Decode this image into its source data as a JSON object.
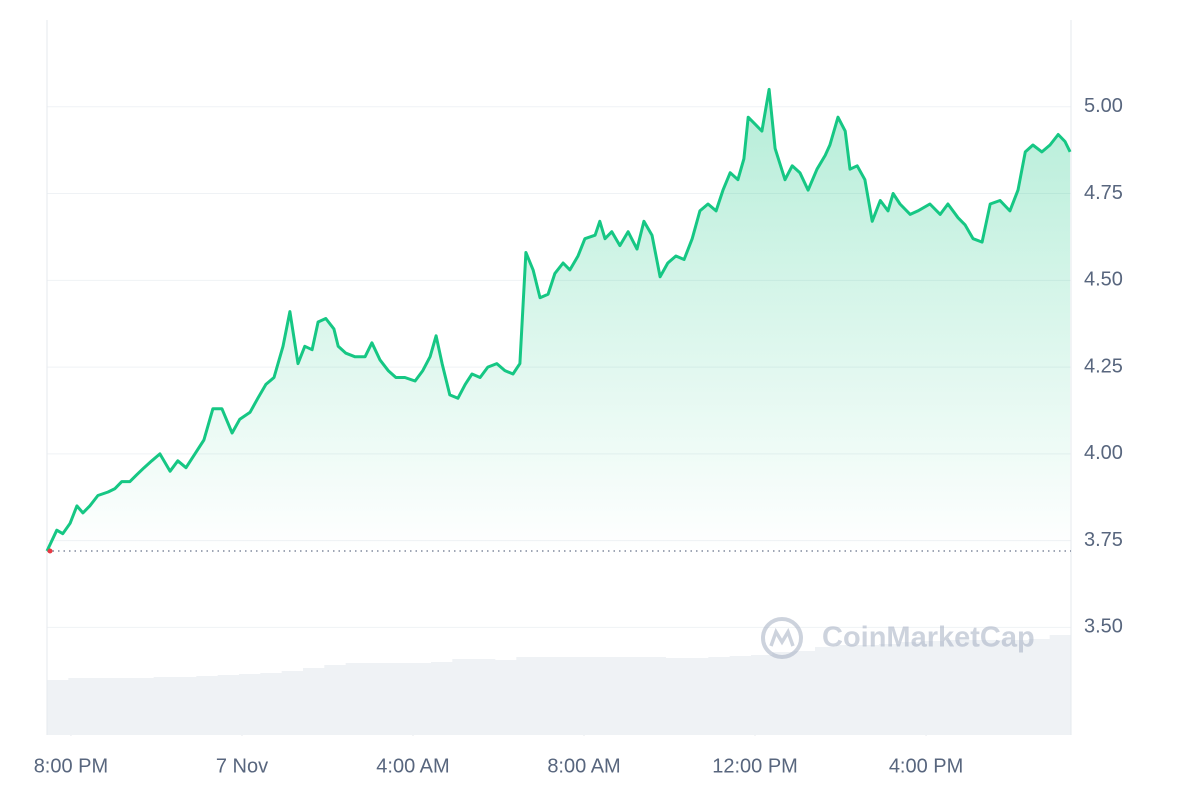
{
  "chart_data": {
    "type": "line",
    "watermark": "CoinMarketCap",
    "x": [
      -0.56,
      -0.33,
      -0.19,
      -0.02,
      0.14,
      0.28,
      0.44,
      0.63,
      0.87,
      1.03,
      1.19,
      1.38,
      1.54,
      1.71,
      1.89,
      2.08,
      2.32,
      2.5,
      2.69,
      2.9,
      3.11,
      3.32,
      3.53,
      3.77,
      3.95,
      4.19,
      4.37,
      4.56,
      4.75,
      4.96,
      5.12,
      5.31,
      5.47,
      5.64,
      5.78,
      5.96,
      6.15,
      6.25,
      6.43,
      6.64,
      6.88,
      7.04,
      7.23,
      7.42,
      7.6,
      7.81,
      8.05,
      8.23,
      8.4,
      8.54,
      8.68,
      8.86,
      9.05,
      9.22,
      9.38,
      9.57,
      9.75,
      9.96,
      10.15,
      10.34,
      10.5,
      10.64,
      10.81,
      10.97,
      11.16,
      11.32,
      11.51,
      11.67,
      11.86,
      12.02,
      12.26,
      12.37,
      12.49,
      12.65,
      12.84,
      13.03,
      13.24,
      13.4,
      13.59,
      13.78,
      13.96,
      14.15,
      14.34,
      14.53,
      14.71,
      14.9,
      15.09,
      15.25,
      15.42,
      15.6,
      15.74,
      15.84,
      16.0,
      16.16,
      16.33,
      16.47,
      16.7,
      16.87,
      17.05,
      17.24,
      17.45,
      17.64,
      17.75,
      17.94,
      18.11,
      18.22,
      18.39,
      18.57,
      18.74,
      18.93,
      19.11,
      19.23,
      19.39,
      19.63,
      19.81,
      20.09,
      20.33,
      20.51,
      20.75,
      20.91,
      21.1,
      21.31,
      21.5,
      21.73,
      21.96,
      22.15,
      22.32,
      22.5,
      22.71,
      22.9,
      23.09,
      23.25,
      23.37
    ],
    "series": [
      {
        "color": "#16c784",
        "values": [
          3.72,
          3.78,
          3.77,
          3.8,
          3.85,
          3.83,
          3.85,
          3.88,
          3.89,
          3.9,
          3.92,
          3.92,
          3.94,
          3.96,
          3.98,
          4.0,
          3.95,
          3.98,
          3.96,
          4.0,
          4.04,
          4.13,
          4.13,
          4.06,
          4.1,
          4.12,
          4.16,
          4.2,
          4.22,
          4.31,
          4.41,
          4.26,
          4.31,
          4.3,
          4.38,
          4.39,
          4.36,
          4.31,
          4.29,
          4.28,
          4.28,
          4.32,
          4.27,
          4.24,
          4.22,
          4.22,
          4.21,
          4.24,
          4.28,
          4.34,
          4.26,
          4.17,
          4.16,
          4.2,
          4.23,
          4.22,
          4.25,
          4.26,
          4.24,
          4.23,
          4.26,
          4.58,
          4.53,
          4.45,
          4.46,
          4.52,
          4.55,
          4.53,
          4.57,
          4.62,
          4.63,
          4.67,
          4.62,
          4.64,
          4.6,
          4.64,
          4.59,
          4.67,
          4.63,
          4.51,
          4.55,
          4.57,
          4.56,
          4.62,
          4.7,
          4.72,
          4.7,
          4.76,
          4.81,
          4.79,
          4.85,
          4.97,
          4.95,
          4.93,
          5.05,
          4.88,
          4.79,
          4.83,
          4.81,
          4.76,
          4.82,
          4.86,
          4.89,
          4.97,
          4.93,
          4.82,
          4.83,
          4.79,
          4.67,
          4.73,
          4.7,
          4.75,
          4.72,
          4.69,
          4.7,
          4.72,
          4.69,
          4.72,
          4.68,
          4.66,
          4.62,
          4.61,
          4.72,
          4.73,
          4.7,
          4.76,
          4.87,
          4.89,
          4.87,
          4.89,
          4.92,
          4.9,
          4.87
        ]
      }
    ],
    "reference_line": 3.72,
    "xlim": [
      -0.56,
      23.39
    ],
    "xticks": [
      {
        "value": 0,
        "label": "8:00 PM"
      },
      {
        "value": 4,
        "label": "7 Nov"
      },
      {
        "value": 8,
        "label": "4:00 AM"
      },
      {
        "value": 12,
        "label": "8:00 AM"
      },
      {
        "value": 16,
        "label": "12:00 PM"
      },
      {
        "value": 20,
        "label": "4:00 PM"
      }
    ],
    "ylim": [
      3.19,
      5.25
    ],
    "yticks": [
      {
        "value": 3.5,
        "label": "3.50"
      },
      {
        "value": 3.75,
        "label": "3.75"
      },
      {
        "value": 4,
        "label": "4.00"
      },
      {
        "value": 4.25,
        "label": "4.25"
      },
      {
        "value": 4.5,
        "label": "4.50"
      },
      {
        "value": 4.75,
        "label": "4.75"
      },
      {
        "value": 5,
        "label": "5.00"
      }
    ],
    "grid": true,
    "volume": {
      "color": "#eff2f5",
      "ylim": [
        0,
        100
      ],
      "values": [
        55,
        57,
        57,
        57,
        57,
        58,
        58,
        59,
        60,
        61,
        62,
        64,
        67,
        70,
        72,
        72,
        72,
        72,
        73,
        76,
        76,
        75,
        78,
        78,
        78,
        78,
        78,
        78,
        78,
        77,
        77,
        78,
        79,
        80,
        83,
        84,
        88,
        90,
        90,
        91,
        93,
        94,
        95,
        95,
        95,
        95,
        96,
        100
      ]
    }
  }
}
